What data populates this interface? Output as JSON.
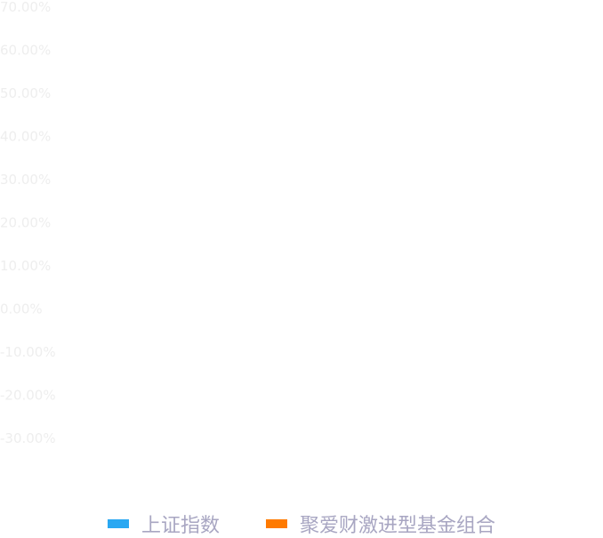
{
  "chart_data": {
    "type": "line",
    "title": "",
    "xlabel": "",
    "ylabel": "",
    "y_ticks": [
      "70.00%",
      "60.00%",
      "50.00%",
      "40.00%",
      "30.00%",
      "20.00%",
      "10.00%",
      "0.00%",
      "-10.00%",
      "-20.00%",
      "-30.00%"
    ],
    "ylim": [
      -30,
      70
    ],
    "grid": false,
    "legend_position": "bottom",
    "series": [
      {
        "name": "上证指数",
        "color": "#2aa8f2",
        "values": []
      },
      {
        "name": "聚爱财激进型基金组合",
        "color": "#ff7a00",
        "values": []
      }
    ]
  },
  "colors": {
    "tick_label": "#eeeeee",
    "legend_text": "#a8a6c2"
  }
}
